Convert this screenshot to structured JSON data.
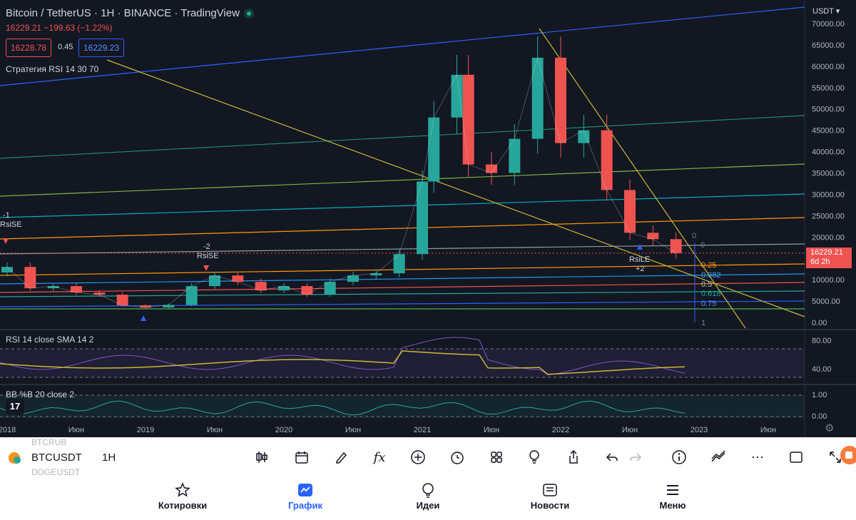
{
  "header": {
    "title": "Bitcoin / TetherUS · 1H · BINANCE · TradingView",
    "price_line": "16229.21  −199.63 (−1.22%)",
    "bid": "16228.78",
    "spread": "0.45",
    "ask": "16229.23",
    "strategy": "Стратегия RSI 14 30 70"
  },
  "price_axis": {
    "currency": "USDT",
    "ticks": [
      "70000.00",
      "65000.00",
      "60000.00",
      "55000.00",
      "50000.00",
      "45000.00",
      "40000.00",
      "35000.00",
      "30000.00",
      "25000.00",
      "20000.00",
      "15000.00",
      "10000.00",
      "5000.00",
      "0.00"
    ],
    "current_price": "16229.21",
    "countdown": "6d 2h"
  },
  "annotations": {
    "signal_left_num": "-1",
    "signal_left": "RsiSE",
    "signal_mid_num": "-2",
    "signal_mid": "RsiSE",
    "signal_right": "RsiLE",
    "signal_right_num": "+2",
    "fib_levels": [
      "0",
      "0",
      "0.25",
      "0.382",
      "0.5",
      "0.618",
      "0.75",
      "1"
    ]
  },
  "rsi_panel": {
    "label": "RSI 14 close SMA 14 2",
    "ticks": [
      "80.00",
      "40.00"
    ]
  },
  "bb_panel": {
    "label": "BB %B 20 close 2",
    "ticks": [
      "1.00",
      "0.00"
    ]
  },
  "time_axis": [
    "2018",
    "Июн",
    "2019",
    "Июн",
    "2020",
    "Июн",
    "2021",
    "Июн",
    "2022",
    "Июн",
    "2023",
    "Июн"
  ],
  "toolbar": {
    "symbol": "BTCUSDT",
    "symbol_above": "BTCRUB",
    "symbol_below": "DOGEUSDT",
    "interval": "1H"
  },
  "bottom_nav": {
    "items": [
      "Котировки",
      "График",
      "Идеи",
      "Новости",
      "Меню"
    ],
    "active": "График"
  },
  "colors": {
    "background": "#131722",
    "up": "#26a69a",
    "down": "#ef5350",
    "accent": "#2962ff",
    "trend_yellow": "#c9b735"
  },
  "chart_data": {
    "type": "candlestick",
    "symbol": "Bitcoin / TetherUS",
    "interval": "1H",
    "ylim": [
      0,
      70000
    ],
    "dates": [
      "2018-01",
      "2018-03",
      "2018-05",
      "2018-07",
      "2018-09",
      "2018-11",
      "2019-01",
      "2019-03",
      "2019-05",
      "2019-07",
      "2019-09",
      "2019-11",
      "2020-01",
      "2020-03",
      "2020-05",
      "2020-07",
      "2020-09",
      "2020-11",
      "2021-01",
      "2021-02",
      "2021-04",
      "2021-05",
      "2021-07",
      "2021-09",
      "2021-11",
      "2022-01",
      "2022-03",
      "2022-05",
      "2022-07",
      "2022-09",
      "2022-11"
    ],
    "close": [
      13000,
      8000,
      8500,
      7000,
      6500,
      4000,
      3500,
      4100,
      8500,
      11000,
      9500,
      7500,
      8500,
      6500,
      9500,
      11000,
      11500,
      16000,
      33000,
      48000,
      58000,
      37000,
      35000,
      43000,
      62000,
      42000,
      45000,
      31000,
      21000,
      19500,
      16229
    ]
  }
}
